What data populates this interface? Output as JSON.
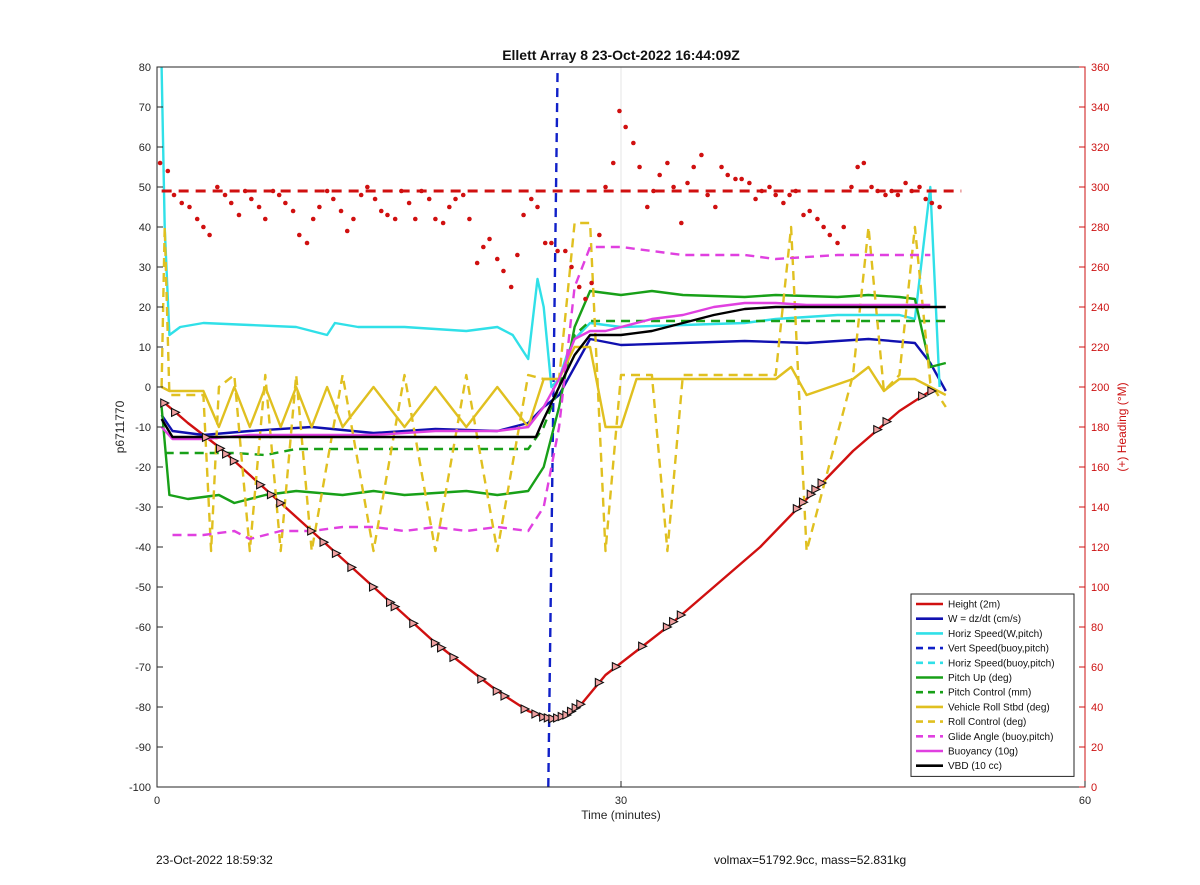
{
  "chart_data": {
    "type": "line",
    "title": "Ellett Array 8 23-Oct-2022 16:44:09Z",
    "xlabel": "Time (minutes)",
    "ylabel": "p6711770",
    "y2label": "(+) Heading (°M)",
    "xlim": [
      0,
      60
    ],
    "ylim": [
      -100,
      80
    ],
    "y2lim": [
      0,
      360
    ],
    "xticks": [
      0,
      30,
      60
    ],
    "yticks": [
      -100,
      -90,
      -80,
      -70,
      -60,
      -50,
      -40,
      -30,
      -20,
      -10,
      0,
      10,
      20,
      30,
      40,
      50,
      60,
      70,
      80
    ],
    "y2ticks": [
      0,
      20,
      40,
      60,
      80,
      100,
      120,
      140,
      160,
      180,
      200,
      220,
      240,
      260,
      280,
      300,
      320,
      340,
      360
    ],
    "grid": "vertical",
    "legend_position": "bottom-right",
    "apogee_minute": 25.7,
    "target_heading": 298,
    "series": [
      {
        "name": "Height (2m)",
        "color": "#d01010",
        "style": "solid",
        "x": [
          0.5,
          2,
          4,
          6,
          8,
          10,
          12,
          14,
          16,
          18,
          20,
          22,
          24,
          25,
          25.7,
          26.5,
          27.5,
          29,
          31,
          33,
          36,
          39,
          42,
          45,
          48,
          50
        ],
        "y": [
          -4,
          -9,
          -15,
          -22,
          -29,
          -36,
          -43,
          -50,
          -57,
          -64,
          -70,
          -76,
          -81,
          -82.5,
          -83,
          -82,
          -79,
          -72,
          -66,
          -60,
          -50,
          -40,
          -28,
          -16,
          -6,
          -1
        ]
      },
      {
        "name": "W = dz/dt (cm/s)",
        "color": "#1010b0",
        "style": "solid",
        "x": [
          0.3,
          1,
          3,
          6,
          10,
          14,
          18,
          22,
          24,
          25,
          26,
          27,
          28,
          30,
          34,
          38,
          42,
          46,
          49,
          50,
          51
        ],
        "y": [
          -7,
          -11,
          -12,
          -11,
          -10,
          -11.5,
          -10.5,
          -11,
          -9,
          -5,
          -2,
          5,
          12,
          10.5,
          11,
          11.5,
          11,
          12,
          11,
          6,
          -1
        ]
      },
      {
        "name": "Horiz Speed(W,pitch)",
        "color": "#30e0e8",
        "style": "solid",
        "x": [
          0.3,
          0.5,
          0.8,
          1.5,
          3,
          6,
          9,
          11,
          11.5,
          13,
          16,
          20,
          22,
          23,
          24,
          24.6,
          25,
          25.5,
          26,
          26.5,
          27,
          28,
          30,
          34,
          38,
          40,
          44,
          48,
          49,
          50,
          50.6
        ],
        "y": [
          80,
          40,
          13,
          15,
          16,
          15.5,
          15,
          13,
          16,
          15,
          15,
          14,
          15,
          13,
          7,
          27,
          20,
          0,
          2,
          8,
          12,
          16,
          15,
          15.5,
          16,
          17,
          18,
          18,
          17,
          50,
          0
        ]
      },
      {
        "name": "Vert Speed(buoy,pitch)",
        "color": "#1020c8",
        "style": "dashed",
        "x": [
          25.3,
          25.9
        ],
        "y": [
          -100,
          80
        ]
      },
      {
        "name": "Horiz Speed(buoy,pitch)",
        "color": "#30e0e8",
        "style": "dashed",
        "x": [],
        "y": []
      },
      {
        "name": "Pitch Up (deg)",
        "color": "#18a018",
        "style": "solid",
        "x": [
          0.3,
          0.8,
          2,
          4,
          5,
          7,
          9,
          12,
          14,
          16,
          20,
          22,
          24,
          25,
          26,
          27,
          28,
          30,
          32,
          34,
          38,
          40,
          44,
          46,
          48,
          49,
          50,
          51
        ],
        "y": [
          -5,
          -27,
          -28,
          -27,
          -29,
          -27,
          -26,
          -27,
          -26,
          -27,
          -26,
          -27,
          -26,
          -20,
          -5,
          15,
          24,
          23,
          24,
          23,
          22.5,
          23,
          22.5,
          23,
          22.5,
          22,
          5,
          6
        ]
      },
      {
        "name": "Pitch Control (mm)",
        "color": "#18a018",
        "style": "dashed",
        "x": [
          0.5,
          2,
          5,
          7,
          9,
          20,
          24,
          25,
          26,
          27,
          28,
          31,
          35,
          40,
          45,
          51
        ],
        "y": [
          -16.5,
          -16.5,
          -16.5,
          -17,
          -15.5,
          -15.5,
          -15.5,
          -10,
          0,
          13,
          16.5,
          16.5,
          16.5,
          16.5,
          16.5,
          16.5
        ]
      },
      {
        "name": "Vehicle Roll Stbd (deg)",
        "color": "#e0c020",
        "style": "solid",
        "x": [
          0.3,
          0.8,
          3,
          4,
          5,
          6,
          7,
          8,
          9,
          10,
          11,
          12,
          14,
          16,
          18,
          20,
          22,
          24,
          25,
          26,
          27,
          28,
          29,
          30,
          31,
          32,
          33,
          34,
          40,
          41,
          42,
          45,
          46,
          47,
          48,
          49,
          50,
          51
        ],
        "y": [
          0,
          -1,
          -1,
          -10,
          0,
          -10,
          0,
          -10,
          0,
          -10,
          0,
          -10,
          0,
          -10,
          0,
          -10,
          0,
          -10,
          2,
          2,
          10,
          10,
          -10,
          -10,
          2,
          2,
          2,
          2,
          2,
          5,
          -2,
          2,
          5,
          -1,
          2,
          2,
          0,
          -2
        ]
      },
      {
        "name": "Roll Control (deg)",
        "color": "#e0c020",
        "style": "dashed",
        "x": [
          0.3,
          0.5,
          0.8,
          2,
          3,
          3.5,
          4,
          5,
          6,
          7,
          8,
          9,
          10,
          12,
          14,
          16,
          18,
          20,
          22,
          24,
          25,
          26,
          27,
          28,
          29,
          30,
          31,
          32,
          33,
          34,
          40,
          41,
          42,
          45,
          46,
          47,
          48,
          49,
          50,
          51
        ],
        "y": [
          0,
          40,
          -2,
          -2,
          -2,
          -41,
          0,
          3,
          -41,
          3,
          -41,
          3,
          -41,
          3,
          -41,
          3,
          -41,
          3,
          -41,
          3,
          2,
          2,
          41,
          41,
          -41,
          3,
          3,
          3,
          -41,
          3,
          3,
          40,
          -41,
          3,
          40,
          -1,
          3,
          40,
          1,
          -5
        ]
      },
      {
        "name": "Glide Angle (buoy,pitch)",
        "color": "#e040e0",
        "style": "dashed",
        "x": [
          1,
          3,
          5,
          6,
          8,
          10,
          12,
          14,
          16,
          18,
          20,
          22,
          24,
          25,
          26,
          27,
          28,
          30,
          32,
          34,
          38,
          40,
          44,
          48,
          50
        ],
        "y": [
          -37,
          -37,
          -36,
          -38,
          -36,
          -36,
          -35,
          -35,
          -36,
          -35,
          -36,
          -35,
          -36,
          -30,
          -10,
          25,
          35,
          35,
          34,
          33,
          33,
          32,
          33,
          33,
          33
        ]
      },
      {
        "name": "Buoyancy (10g)",
        "color": "#e040e0",
        "style": "solid",
        "x": [
          0.3,
          1,
          3,
          6,
          10,
          14,
          18,
          22,
          24,
          25,
          26,
          27,
          28,
          29,
          30,
          32,
          34,
          36,
          38,
          40,
          42,
          46,
          48,
          50
        ],
        "y": [
          -10,
          -13,
          -13,
          -12,
          -12,
          -12,
          -11,
          -11,
          -10,
          -5,
          2,
          12,
          14,
          14,
          15,
          17,
          18,
          20,
          21,
          21,
          20.5,
          20.5,
          20.5,
          20.5
        ]
      },
      {
        "name": "VBD (10 cc)",
        "color": "#000000",
        "style": "solid",
        "x": [
          0.3,
          1,
          3,
          10,
          20,
          24,
          24.5,
          25,
          26,
          27,
          28,
          30,
          32,
          34,
          36,
          38,
          40,
          42,
          46,
          50,
          51
        ],
        "y": [
          -8,
          -12.5,
          -12.5,
          -12.5,
          -12.5,
          -12.5,
          -12.5,
          -8,
          0,
          8,
          13,
          13,
          14,
          16,
          18,
          19.5,
          20,
          20,
          20,
          20,
          20
        ]
      }
    ],
    "heading_scatter": {
      "color": "#d01010",
      "x": [
        0.2,
        0.7,
        1.1,
        1.6,
        2.1,
        2.6,
        3.0,
        3.4,
        3.9,
        4.4,
        4.8,
        5.3,
        5.7,
        6.1,
        6.6,
        7.0,
        7.5,
        7.9,
        8.3,
        8.8,
        9.2,
        9.7,
        10.1,
        10.5,
        11.0,
        11.4,
        11.9,
        12.3,
        12.7,
        13.2,
        13.6,
        14.1,
        14.5,
        14.9,
        15.4,
        15.8,
        16.3,
        16.7,
        17.1,
        17.6,
        18.0,
        18.5,
        18.9,
        19.3,
        19.8,
        20.2,
        20.7,
        21.1,
        21.5,
        22.0,
        22.4,
        22.9,
        23.3,
        23.7,
        24.2,
        24.6,
        25.1,
        25.5,
        25.9,
        26.4,
        26.8,
        27.3,
        27.7,
        28.1,
        28.6,
        29.0,
        29.5,
        29.9,
        30.3,
        30.8,
        31.2,
        31.7,
        32.1,
        32.5,
        33.0,
        33.4,
        33.9,
        34.3,
        34.7,
        35.2,
        35.6,
        36.1,
        36.5,
        36.9,
        37.4,
        37.8,
        38.3,
        38.7,
        39.1,
        39.6,
        40.0,
        40.5,
        40.9,
        41.3,
        41.8,
        42.2,
        42.7,
        43.1,
        43.5,
        44.0,
        44.4,
        44.9,
        45.3,
        45.7,
        46.2,
        46.6,
        47.1,
        47.5,
        47.9,
        48.4,
        48.8,
        49.3,
        49.7,
        50.1,
        50.6
      ],
      "y": [
        312,
        308,
        296,
        292,
        290,
        284,
        280,
        276,
        300,
        296,
        292,
        286,
        298,
        294,
        290,
        284,
        298,
        296,
        292,
        288,
        276,
        272,
        284,
        290,
        298,
        294,
        288,
        278,
        284,
        296,
        300,
        294,
        288,
        286,
        284,
        298,
        292,
        284,
        298,
        294,
        284,
        282,
        290,
        294,
        296,
        284,
        262,
        270,
        274,
        264,
        258,
        250,
        266,
        286,
        294,
        290,
        272,
        272,
        268,
        268,
        260,
        250,
        244,
        252,
        276,
        300,
        312,
        338,
        330,
        322,
        310,
        290,
        298,
        306,
        312,
        300,
        282,
        302,
        310,
        316,
        296,
        290,
        310,
        306,
        304,
        304,
        302,
        294,
        298,
        300,
        296,
        292,
        296,
        298,
        286,
        288,
        284,
        280,
        276,
        272,
        280,
        300,
        310,
        312,
        300,
        298,
        296,
        298,
        296,
        302,
        298,
        300,
        294,
        292,
        290
      ]
    },
    "markers_height_x": [
      0.5,
      1.2,
      3.2,
      4.1,
      4.5,
      5.0,
      6.7,
      7.4,
      8.0,
      10.0,
      10.8,
      11.6,
      12.6,
      14.0,
      15.1,
      15.4,
      16.6,
      18.0,
      18.4,
      19.2,
      21.0,
      22.0,
      22.5,
      23.8,
      24.5,
      25.0,
      25.3,
      25.6,
      25.9,
      26.2,
      26.5,
      26.8,
      27.1,
      27.4,
      28.6,
      29.7,
      31.4,
      33.0,
      33.4,
      33.9,
      41.4,
      41.8,
      42.3,
      42.6,
      43.0,
      46.6,
      47.2,
      49.5,
      50.1
    ],
    "markers_vert": [
      {
        "x": 25.8,
        "y": -82.6
      },
      {
        "x": 26.0,
        "y": -82.4
      }
    ]
  },
  "footer": {
    "left": "23-Oct-2022 18:59:32",
    "right": "volmax=51792.9cc, mass=52.831kg"
  }
}
